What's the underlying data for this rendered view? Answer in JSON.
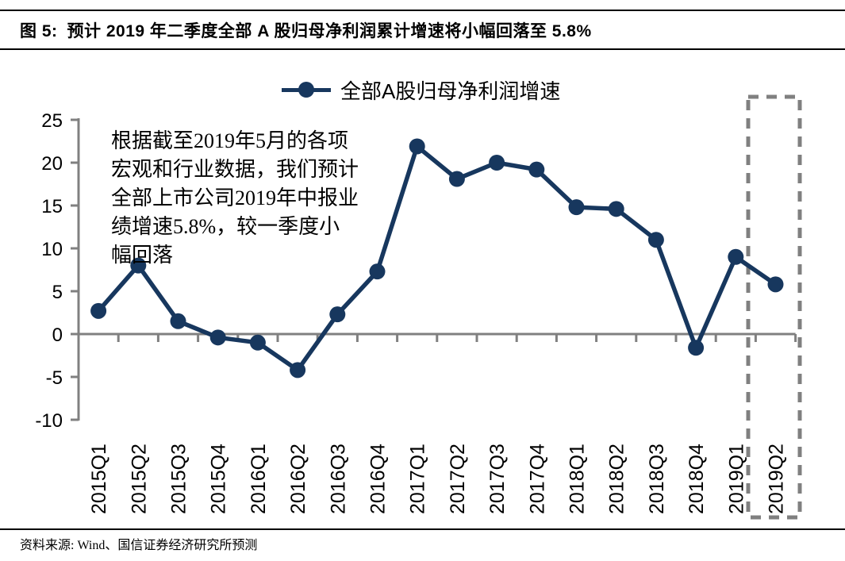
{
  "header": {
    "figure_label": "图 5:",
    "figure_title": "预计 2019 年二季度全部 A 股归母净利润累计增速将小幅回落至 5.8%"
  },
  "chart_data": {
    "type": "line",
    "title": "",
    "xlabel": "",
    "ylabel": "",
    "categories": [
      "2015Q1",
      "2015Q2",
      "2015Q3",
      "2015Q4",
      "2016Q1",
      "2016Q2",
      "2016Q3",
      "2016Q4",
      "2017Q1",
      "2017Q2",
      "2017Q3",
      "2017Q4",
      "2018Q1",
      "2018Q2",
      "2018Q3",
      "2018Q4",
      "2019Q1",
      "2019Q2"
    ],
    "series": [
      {
        "name": "全部A股归母净利润增速",
        "values": [
          2.7,
          8.0,
          1.5,
          -0.4,
          -1.0,
          -4.2,
          2.3,
          7.3,
          21.9,
          18.1,
          20.0,
          19.2,
          14.8,
          14.6,
          11.0,
          -1.6,
          9.0,
          5.8
        ]
      }
    ],
    "ylim": [
      -10,
      25
    ],
    "yticks": [
      25,
      20,
      15,
      10,
      5,
      0,
      -5,
      -10
    ],
    "grid": false,
    "legend_position": "top-center",
    "highlight": {
      "category": "2019Q2",
      "style": "gray-dashed-box"
    },
    "annotation_lines": [
      "根据截至2019年5月的各项",
      "宏观和行业数据，我们预计",
      "全部上市公司2019年中报业",
      "绩增速5.8%，较一季度小",
      "幅回落"
    ],
    "colors": {
      "line": "#17375e",
      "axis": "#808080",
      "highlight_box": "#808080",
      "text": "#000000"
    }
  },
  "footer": {
    "source": "资料来源: Wind、国信证券经济研究所预测"
  }
}
